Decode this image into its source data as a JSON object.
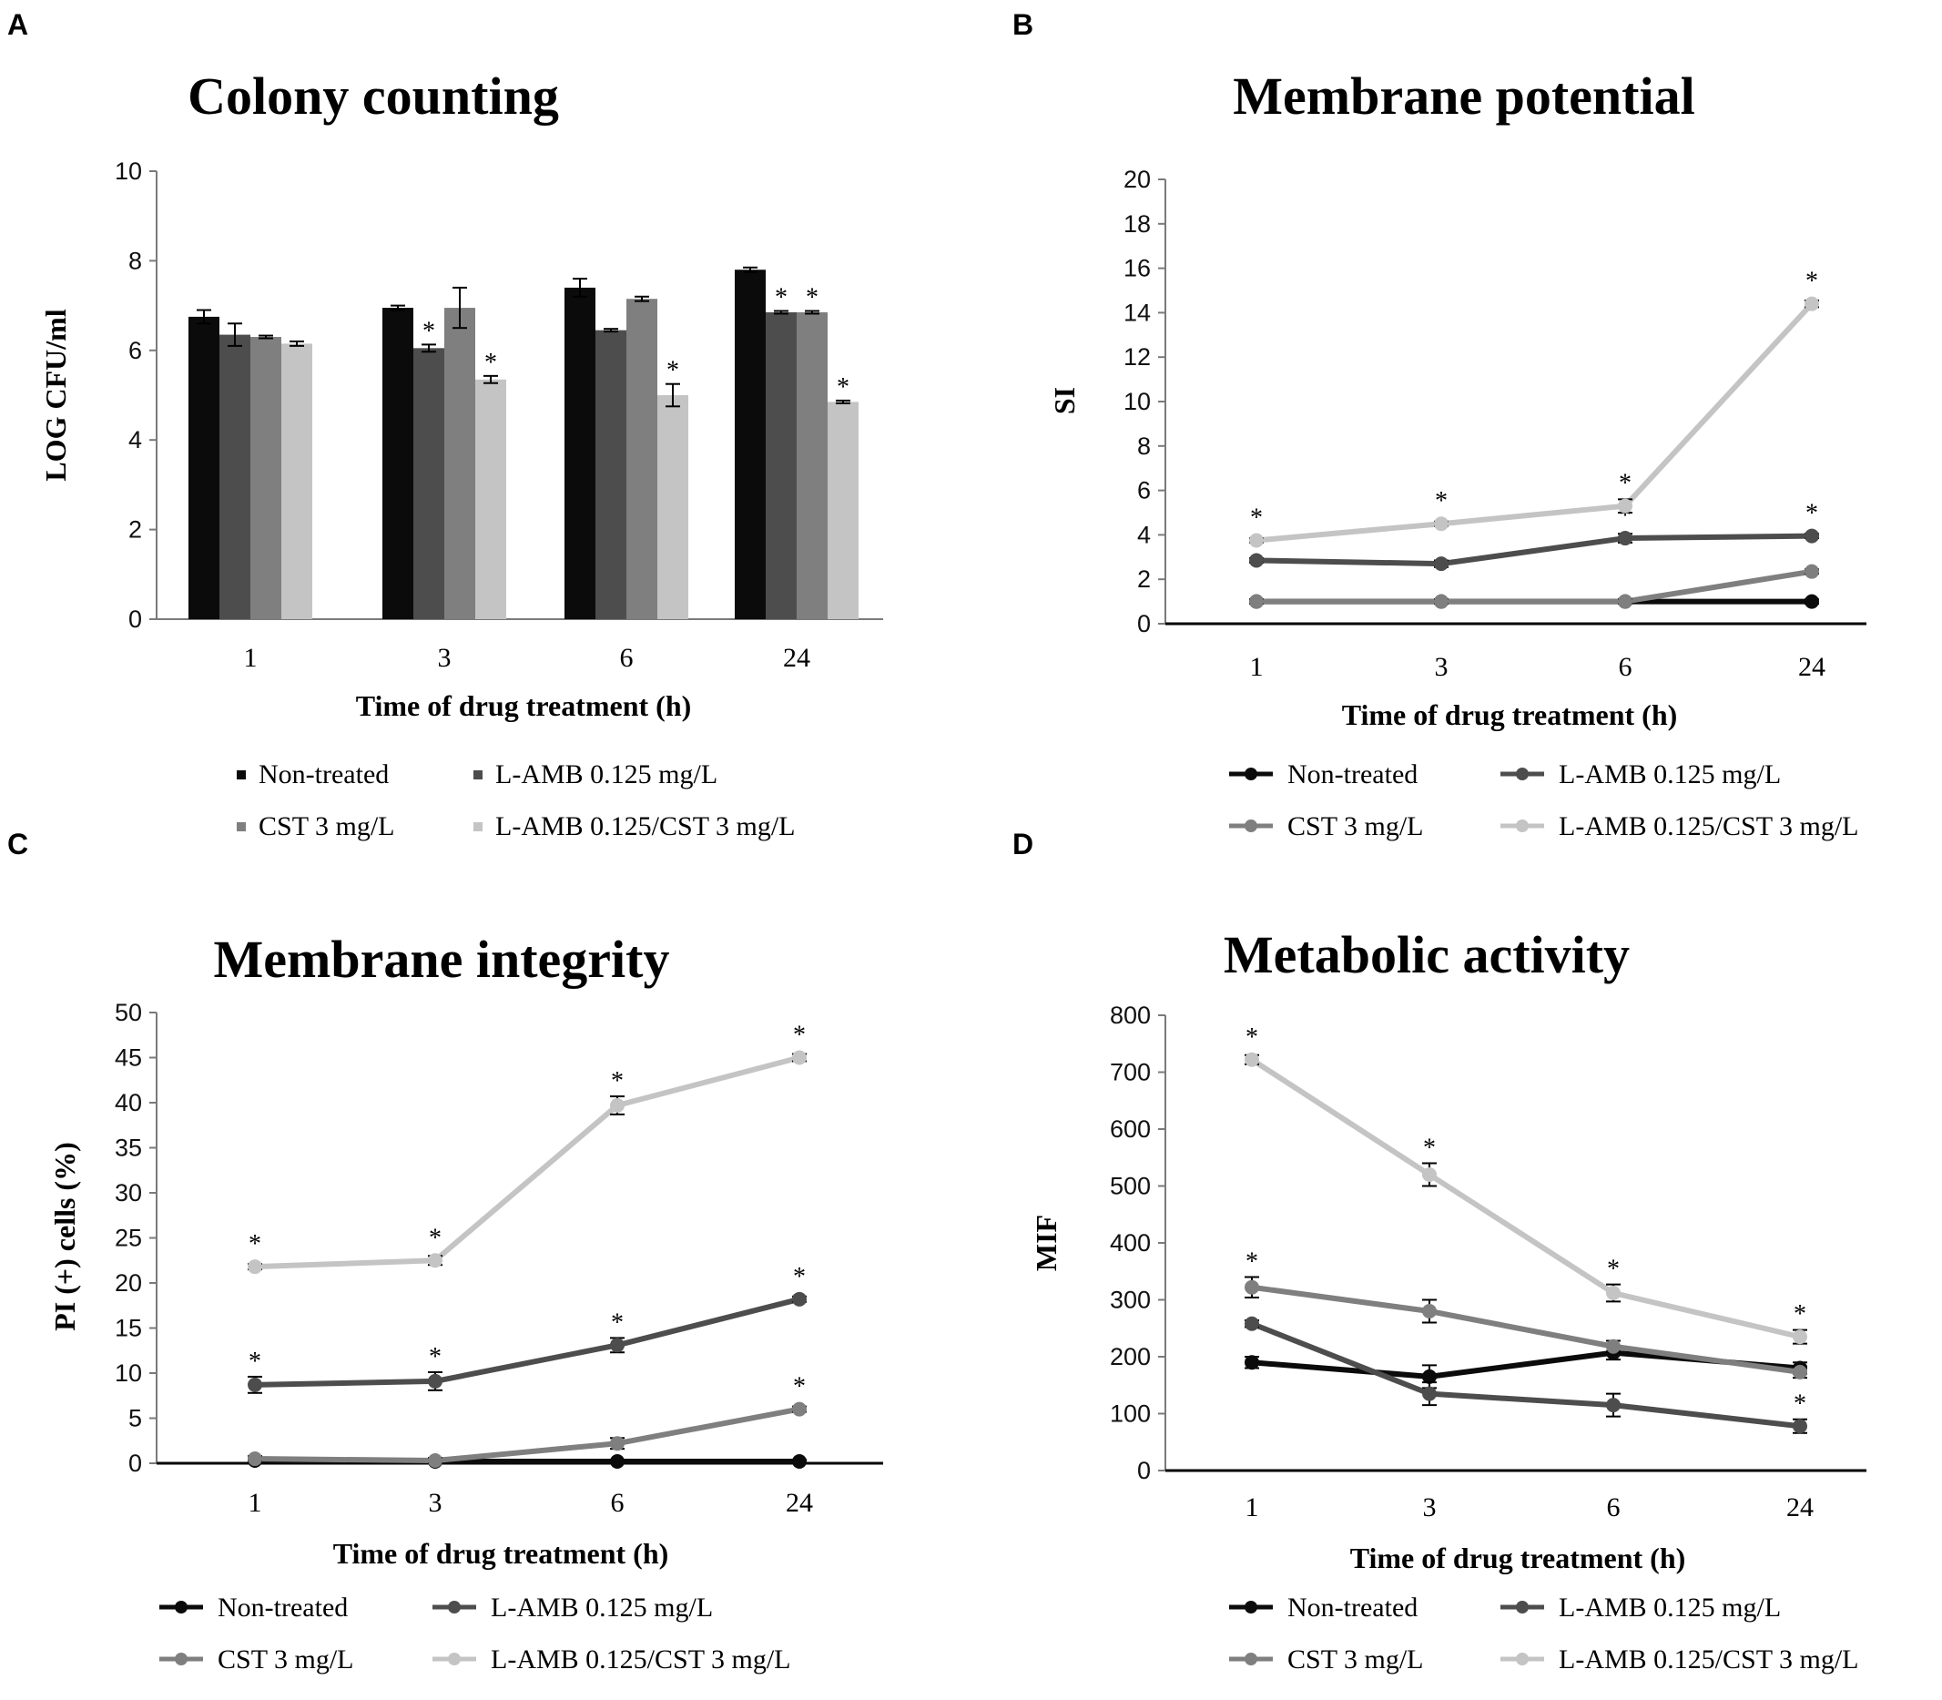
{
  "colors": {
    "non_treated": "#0b0b0b",
    "lamb": "#4d4d4d",
    "cst": "#7f7f7f",
    "combo": "#c4c4c4",
    "axis": "#000000",
    "tick": "#7a7a7a"
  },
  "legend_labels": [
    "Non-treated",
    "L-AMB 0.125 mg/L",
    "CST 3 mg/L",
    "L-AMB 0.125/CST 3 mg/L"
  ],
  "chart_data": [
    {
      "panel": "A",
      "type": "bar",
      "title": "Colony counting",
      "xlabel": "Time of drug treatment (h)",
      "ylabel": "LOG CFU/ml",
      "categories": [
        "1",
        "3",
        "6",
        "24"
      ],
      "ylim": [
        0,
        10
      ],
      "yticks": [
        0,
        2,
        4,
        6,
        8,
        10
      ],
      "series": [
        {
          "name": "Non-treated",
          "values": [
            6.75,
            6.95,
            7.4,
            7.8
          ],
          "errors": [
            0.15,
            0.05,
            0.2,
            0.05
          ],
          "sig": [
            false,
            false,
            false,
            false
          ]
        },
        {
          "name": "L-AMB 0.125 mg/L",
          "values": [
            6.35,
            6.05,
            6.45,
            6.85
          ],
          "errors": [
            0.25,
            0.08,
            0.03,
            0.03
          ],
          "sig": [
            false,
            true,
            false,
            true
          ]
        },
        {
          "name": "CST 3 mg/L",
          "values": [
            6.3,
            6.95,
            7.15,
            6.85
          ],
          "errors": [
            0.03,
            0.45,
            0.05,
            0.03
          ],
          "sig": [
            false,
            false,
            false,
            true
          ]
        },
        {
          "name": "L-AMB 0.125/CST 3 mg/L",
          "values": [
            6.15,
            5.35,
            5.0,
            4.85
          ],
          "errors": [
            0.05,
            0.08,
            0.25,
            0.03
          ],
          "sig": [
            false,
            true,
            true,
            true
          ]
        }
      ],
      "legend": [
        "Non-treated",
        "L-AMB 0.125 mg/L",
        "CST 3 mg/L",
        "L-AMB 0.125/CST 3 mg/L"
      ]
    },
    {
      "panel": "B",
      "type": "line",
      "title": "Membrane potential",
      "xlabel": "Time of drug treatment (h)",
      "ylabel": "SI",
      "categories": [
        "1",
        "3",
        "6",
        "24"
      ],
      "ylim": [
        0,
        20
      ],
      "yticks": [
        0,
        2,
        4,
        6,
        8,
        10,
        12,
        14,
        16,
        18,
        20
      ],
      "series": [
        {
          "name": "Non-treated",
          "values": [
            1.0,
            1.0,
            1.0,
            1.0
          ],
          "errors": [
            0.1,
            0.1,
            0.1,
            0.1
          ],
          "sig": [
            false,
            false,
            false,
            false
          ]
        },
        {
          "name": "L-AMB 0.125 mg/L",
          "values": [
            2.85,
            2.7,
            3.85,
            3.95
          ],
          "errors": [
            0.1,
            0.15,
            0.2,
            0.1
          ],
          "sig": [
            false,
            false,
            true,
            true
          ]
        },
        {
          "name": "CST 3 mg/L",
          "values": [
            1.0,
            1.0,
            1.0,
            2.35
          ],
          "errors": [
            0.1,
            0.1,
            0.1,
            0.1
          ],
          "sig": [
            false,
            false,
            false,
            false
          ]
        },
        {
          "name": "L-AMB 0.125/CST 3 mg/L",
          "values": [
            3.75,
            4.5,
            5.3,
            14.4
          ],
          "errors": [
            0.1,
            0.1,
            0.3,
            0.15
          ],
          "sig": [
            true,
            true,
            true,
            true
          ]
        }
      ],
      "legend": [
        "Non-treated",
        "L-AMB 0.125 mg/L",
        "CST 3 mg/L",
        "L-AMB 0.125/CST 3 mg/L"
      ]
    },
    {
      "panel": "C",
      "type": "line",
      "title": "Membrane integrity",
      "xlabel": "Time of drug treatment (h)",
      "ylabel": "PI (+) cells (%)",
      "categories": [
        "1",
        "3",
        "6",
        "24"
      ],
      "ylim": [
        0,
        50
      ],
      "yticks": [
        0,
        5,
        10,
        15,
        20,
        25,
        30,
        35,
        40,
        45,
        50
      ],
      "series": [
        {
          "name": "Non-treated",
          "values": [
            0.3,
            0.2,
            0.2,
            0.2
          ],
          "errors": [
            0.2,
            0.2,
            0.2,
            0.2
          ],
          "sig": [
            false,
            false,
            false,
            false
          ]
        },
        {
          "name": "L-AMB 0.125 mg/L",
          "values": [
            8.7,
            9.1,
            13.1,
            18.2
          ],
          "errors": [
            0.9,
            1.0,
            0.8,
            0.3
          ],
          "sig": [
            true,
            true,
            true,
            true
          ]
        },
        {
          "name": "CST 3 mg/L",
          "values": [
            0.5,
            0.3,
            2.2,
            6.0
          ],
          "errors": [
            0.3,
            0.3,
            0.6,
            0.3
          ],
          "sig": [
            false,
            false,
            false,
            true
          ]
        },
        {
          "name": "L-AMB 0.125/CST 3 mg/L",
          "values": [
            21.8,
            22.5,
            39.7,
            45.0
          ],
          "errors": [
            0.3,
            0.5,
            1.0,
            0.4
          ],
          "sig": [
            true,
            true,
            true,
            true
          ]
        }
      ],
      "legend": [
        "Non-treated",
        "L-AMB 0.125 mg/L",
        "CST 3 mg/L",
        "L-AMB 0.125/CST 3 mg/L"
      ]
    },
    {
      "panel": "D",
      "type": "line",
      "title": "Metabolic activity",
      "xlabel": "Time of drug treatment (h)",
      "ylabel": "MIF",
      "categories": [
        "1",
        "3",
        "6",
        "24"
      ],
      "ylim": [
        0,
        800
      ],
      "yticks": [
        0,
        100,
        200,
        300,
        400,
        500,
        600,
        700,
        800
      ],
      "series": [
        {
          "name": "Non-treated",
          "values": [
            190,
            165,
            207,
            180
          ],
          "errors": [
            10,
            20,
            12,
            10
          ],
          "sig": [
            false,
            false,
            false,
            false
          ]
        },
        {
          "name": "L-AMB 0.125 mg/L",
          "values": [
            258,
            135,
            115,
            78
          ],
          "errors": [
            6,
            20,
            20,
            12
          ],
          "sig": [
            false,
            false,
            false,
            true
          ]
        },
        {
          "name": "CST 3 mg/L",
          "values": [
            322,
            280,
            218,
            173
          ],
          "errors": [
            18,
            20,
            10,
            10
          ],
          "sig": [
            true,
            false,
            false,
            false
          ]
        },
        {
          "name": "L-AMB 0.125/CST 3 mg/L",
          "values": [
            722,
            520,
            312,
            235
          ],
          "errors": [
            8,
            20,
            15,
            12
          ],
          "sig": [
            true,
            true,
            true,
            true
          ]
        }
      ],
      "legend": [
        "Non-treated",
        "L-AMB 0.125 mg/L",
        "CST 3 mg/L",
        "L-AMB 0.125/CST 3 mg/L"
      ]
    }
  ]
}
